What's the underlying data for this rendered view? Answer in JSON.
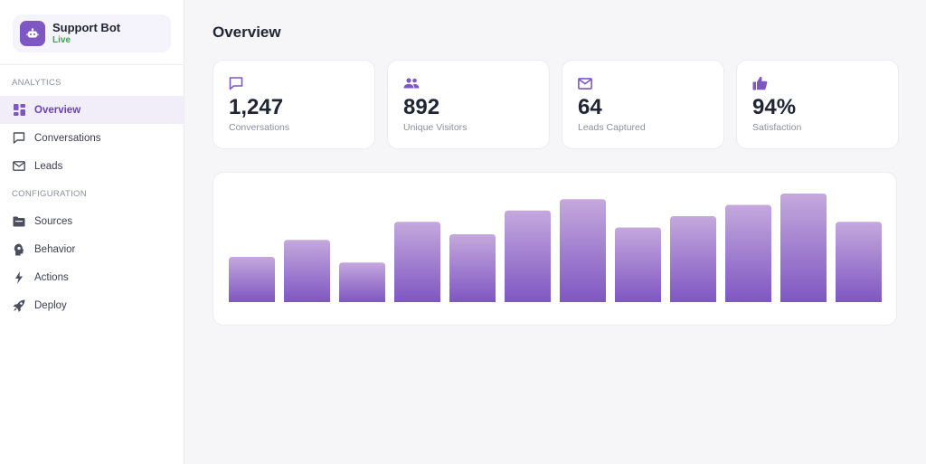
{
  "bot": {
    "name": "Support Bot",
    "status": "Live"
  },
  "sidebar": {
    "analytics_label": "ANALYTICS",
    "configuration_label": "CONFIGURATION",
    "analytics_items": [
      {
        "label": "Overview",
        "icon": "dashboard-icon",
        "active": true
      },
      {
        "label": "Conversations",
        "icon": "chat-bubble-icon",
        "active": false
      },
      {
        "label": "Leads",
        "icon": "mail-icon",
        "active": false
      }
    ],
    "config_items": [
      {
        "label": "Sources",
        "icon": "folder-icon"
      },
      {
        "label": "Behavior",
        "icon": "brain-icon"
      },
      {
        "label": "Actions",
        "icon": "bolt-icon"
      },
      {
        "label": "Deploy",
        "icon": "rocket-icon"
      }
    ]
  },
  "main": {
    "title": "Overview",
    "stats": [
      {
        "value": "1,247",
        "label": "Conversations",
        "icon": "chat-bubble-icon"
      },
      {
        "value": "892",
        "label": "Unique Visitors",
        "icon": "users-icon"
      },
      {
        "value": "64",
        "label": "Leads Captured",
        "icon": "mail-icon"
      },
      {
        "value": "94%",
        "label": "Satisfaction",
        "icon": "thumbs-up-icon"
      }
    ]
  },
  "colors": {
    "accent": "#7e57c2",
    "accent_light": "#c5a8dd",
    "live": "#3ea34a"
  },
  "chart_data": {
    "type": "bar",
    "values": [
      40,
      55,
      35,
      71,
      60,
      81,
      91,
      66,
      76,
      86,
      96,
      71
    ],
    "ylim": [
      0,
      100
    ]
  }
}
